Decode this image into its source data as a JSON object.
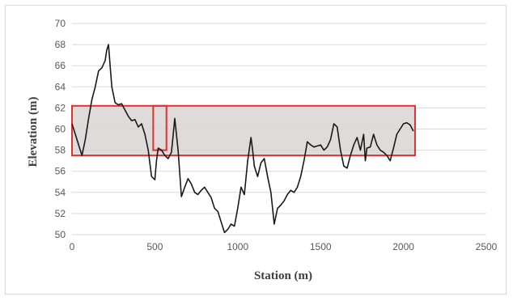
{
  "chart_data": {
    "type": "line",
    "title": "",
    "xlabel": "Station (m)",
    "ylabel": "Elevation (m)",
    "xlim": [
      0,
      2500
    ],
    "ylim": [
      50,
      70
    ],
    "x_ticks": [
      0,
      500,
      1000,
      1500,
      2000,
      2500
    ],
    "y_ticks": [
      50,
      52,
      54,
      56,
      58,
      60,
      62,
      64,
      66,
      68,
      70
    ],
    "grid": "horizontal",
    "legend": "none",
    "colors": {
      "line": "#1a1a1a",
      "band_fill": "#d9d5d5",
      "band_stroke": "#e03030",
      "grid": "#d9d9d9"
    },
    "series": [
      {
        "x": [
          0,
          20,
          40,
          60,
          80,
          100,
          120,
          140,
          160,
          180,
          200,
          210,
          220,
          230,
          240,
          260,
          280,
          300,
          320,
          340,
          360,
          380,
          400,
          420,
          440,
          460,
          480,
          500,
          510,
          520,
          540,
          560,
          580,
          600,
          620,
          640,
          660,
          680,
          700,
          720,
          740,
          760,
          780,
          800,
          820,
          840,
          860,
          880,
          900,
          920,
          940,
          960,
          980,
          1000,
          1020,
          1040,
          1060,
          1080,
          1090,
          1100,
          1120,
          1140,
          1160,
          1180,
          1200,
          1220,
          1240,
          1260,
          1280,
          1300,
          1320,
          1340,
          1360,
          1380,
          1400,
          1420,
          1440,
          1460,
          1480,
          1500,
          1520,
          1540,
          1560,
          1580,
          1600,
          1620,
          1640,
          1660,
          1680,
          1700,
          1720,
          1740,
          1760,
          1770,
          1780,
          1800,
          1820,
          1840,
          1860,
          1880,
          1900,
          1920,
          1940,
          1960,
          1980,
          2000,
          2020,
          2040,
          2060
        ],
        "y": [
          60.5,
          59.5,
          58.5,
          57.5,
          59.0,
          61.0,
          62.8,
          64.0,
          65.5,
          65.8,
          66.5,
          67.5,
          68.0,
          66.0,
          64.0,
          62.5,
          62.3,
          62.4,
          61.8,
          61.2,
          60.8,
          60.9,
          60.2,
          60.5,
          59.5,
          58.0,
          55.5,
          55.2,
          57.0,
          58.2,
          58.0,
          57.5,
          57.2,
          57.8,
          61.0,
          58.0,
          53.6,
          54.5,
          55.3,
          54.8,
          54.0,
          53.8,
          54.2,
          54.5,
          54.0,
          53.5,
          52.5,
          52.2,
          51.2,
          50.2,
          50.5,
          51.0,
          50.8,
          52.5,
          54.5,
          53.8,
          57.0,
          59.2,
          58.0,
          56.5,
          55.5,
          56.8,
          57.2,
          55.5,
          54.0,
          51.0,
          52.5,
          52.8,
          53.2,
          53.8,
          54.2,
          54.0,
          54.5,
          55.5,
          57.0,
          58.8,
          58.5,
          58.3,
          58.4,
          58.5,
          58.0,
          58.3,
          59.0,
          60.5,
          60.2,
          58.0,
          56.5,
          56.3,
          57.5,
          58.5,
          59.2,
          58.0,
          59.5,
          57.0,
          58.2,
          58.3,
          59.5,
          58.5,
          58.0,
          57.8,
          57.5,
          57.0,
          58.2,
          59.5,
          60.0,
          60.5,
          60.6,
          60.4,
          59.8
        ]
      }
    ],
    "annotations": [
      {
        "shape": "rect",
        "x": [
          0,
          2070
        ],
        "y": [
          57.5,
          62.2
        ]
      },
      {
        "shape": "rect",
        "x": [
          490,
          570
        ],
        "y": [
          58.0,
          62.2
        ]
      }
    ]
  }
}
